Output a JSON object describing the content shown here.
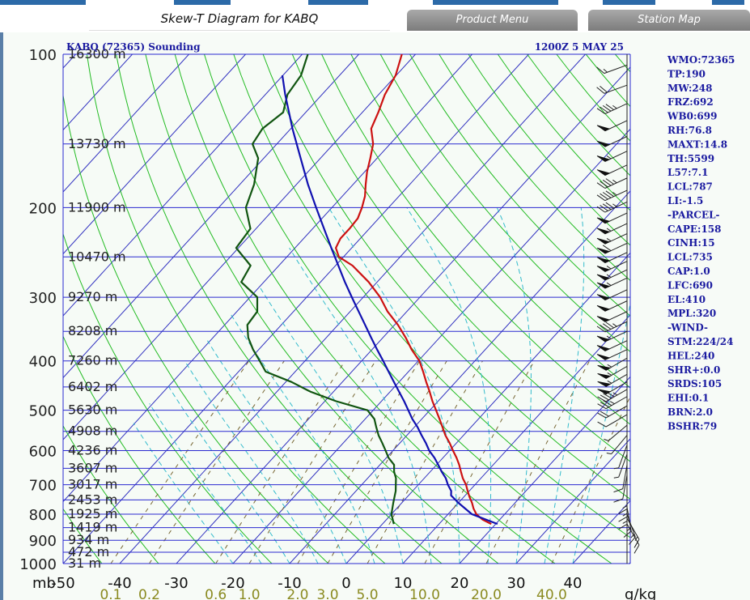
{
  "page": {
    "title": "Skew-T Diagram for KABQ",
    "product_menu_label": "Product Menu",
    "station_map_label": "Station Map"
  },
  "colors": {
    "isobar": "#2a2ad0",
    "isotherm": "#3030c0",
    "dry_adiabat": "#22bb22",
    "moist_adiabat": "#33bbcc",
    "mixing_ratio": "#776633",
    "temperature": "#cc1111",
    "dewpoint": "#115511",
    "parcel": "#1010b0",
    "station_text": "#1a1aa0"
  },
  "chart_data": {
    "type": "line",
    "title": "KABQ (72365) Sounding",
    "time_label": "1200Z  5 MAY 25",
    "pressure_unit_label": "mb",
    "mixing_ratio_unit_label": "g/kg",
    "ylim_mb": [
      1000,
      100
    ],
    "xlim_c": [
      -50,
      50
    ],
    "pressure_ticks": [
      100,
      200,
      300,
      400,
      500,
      600,
      700,
      800,
      900,
      1000
    ],
    "height_ticks": [
      {
        "p": 100,
        "label": "16300 m"
      },
      {
        "p": 150,
        "label": "13730 m"
      },
      {
        "p": 200,
        "label": "11900 m"
      },
      {
        "p": 250,
        "label": "10470 m"
      },
      {
        "p": 300,
        "label": "9270 m"
      },
      {
        "p": 350,
        "label": "8208 m"
      },
      {
        "p": 400,
        "label": "7260 m"
      },
      {
        "p": 450,
        "label": "6402 m"
      },
      {
        "p": 500,
        "label": "5630 m"
      },
      {
        "p": 550,
        "label": "4908 m"
      },
      {
        "p": 600,
        "label": "4236 m"
      },
      {
        "p": 650,
        "label": "3607 m"
      },
      {
        "p": 700,
        "label": "3017 m"
      },
      {
        "p": 750,
        "label": "2453 m"
      },
      {
        "p": 800,
        "label": "1925 m"
      },
      {
        "p": 850,
        "label": "1419 m"
      },
      {
        "p": 900,
        "label": "934 m"
      },
      {
        "p": 950,
        "label": "472 m"
      },
      {
        "p": 1000,
        "label": "31 m"
      }
    ],
    "temp_ticks": [
      "-50",
      "-40",
      "-30",
      "-20",
      "-10",
      "0",
      "10",
      "20",
      "30",
      "40"
    ],
    "mixing_ratio_ticks": [
      "0.1",
      "0.2",
      "0.6",
      "1.0",
      "2.0",
      "3.0",
      "5.0",
      "10.0",
      "20.0",
      "40.0"
    ],
    "mixing_ratio_values": [
      0.1,
      0.2,
      0.6,
      1.0,
      2.0,
      3.0,
      5.0,
      10.0,
      20.0,
      40.0
    ],
    "series": [
      {
        "name": "Temperature",
        "color": "#cc1111",
        "points": [
          [
            836,
            19.2
          ],
          [
            820,
            17.0
          ],
          [
            800,
            15.0
          ],
          [
            780,
            13.6
          ],
          [
            760,
            12.4
          ],
          [
            740,
            11.0
          ],
          [
            720,
            9.7
          ],
          [
            700,
            8.4
          ],
          [
            680,
            6.8
          ],
          [
            660,
            5.4
          ],
          [
            640,
            4.0
          ],
          [
            620,
            2.4
          ],
          [
            600,
            0.6
          ],
          [
            580,
            -1.2
          ],
          [
            560,
            -3.2
          ],
          [
            540,
            -5.0
          ],
          [
            520,
            -6.9
          ],
          [
            500,
            -8.9
          ],
          [
            480,
            -11.0
          ],
          [
            460,
            -13.0
          ],
          [
            440,
            -15.2
          ],
          [
            420,
            -17.4
          ],
          [
            400,
            -19.8
          ],
          [
            380,
            -23.0
          ],
          [
            360,
            -26.0
          ],
          [
            340,
            -29.4
          ],
          [
            320,
            -33.4
          ],
          [
            300,
            -37.0
          ],
          [
            280,
            -41.5
          ],
          [
            260,
            -47.0
          ],
          [
            250,
            -50.8
          ],
          [
            240,
            -52.8
          ],
          [
            230,
            -53.5
          ],
          [
            220,
            -53.5
          ],
          [
            210,
            -53.7
          ],
          [
            200,
            -54.7
          ],
          [
            190,
            -56.0
          ],
          [
            180,
            -57.8
          ],
          [
            170,
            -59.6
          ],
          [
            160,
            -61.2
          ],
          [
            150,
            -63.0
          ],
          [
            140,
            -65.8
          ],
          [
            130,
            -67.2
          ],
          [
            120,
            -68.9
          ],
          [
            110,
            -70.1
          ],
          [
            100,
            -72.4
          ]
        ]
      },
      {
        "name": "Dewpoint",
        "color": "#115511",
        "points": [
          [
            836,
            2.0
          ],
          [
            800,
            0.0
          ],
          [
            760,
            -1.5
          ],
          [
            720,
            -3.0
          ],
          [
            700,
            -4.0
          ],
          [
            680,
            -5.0
          ],
          [
            660,
            -6.4
          ],
          [
            640,
            -7.5
          ],
          [
            620,
            -9.6
          ],
          [
            600,
            -11.3
          ],
          [
            580,
            -13.1
          ],
          [
            560,
            -15.0
          ],
          [
            540,
            -16.7
          ],
          [
            520,
            -18.4
          ],
          [
            500,
            -21.0
          ],
          [
            480,
            -28.0
          ],
          [
            460,
            -34.0
          ],
          [
            440,
            -39.0
          ],
          [
            420,
            -45.2
          ],
          [
            400,
            -48.0
          ],
          [
            380,
            -51.0
          ],
          [
            360,
            -53.8
          ],
          [
            340,
            -56.0
          ],
          [
            320,
            -56.4
          ],
          [
            300,
            -58.7
          ],
          [
            280,
            -64.0
          ],
          [
            260,
            -65.0
          ],
          [
            240,
            -70.4
          ],
          [
            220,
            -71.0
          ],
          [
            200,
            -75.2
          ],
          [
            180,
            -77.5
          ],
          [
            160,
            -81.0
          ],
          [
            150,
            -84.3
          ],
          [
            140,
            -85.0
          ],
          [
            130,
            -84.0
          ],
          [
            120,
            -86.1
          ],
          [
            110,
            -86.8
          ],
          [
            100,
            -89.0
          ]
        ]
      },
      {
        "name": "Parcel",
        "color": "#1010b0",
        "points": [
          [
            836,
            20.3
          ],
          [
            800,
            14.2
          ],
          [
            760,
            10.0
          ],
          [
            735,
            7.5
          ],
          [
            720,
            6.8
          ],
          [
            700,
            5.2
          ],
          [
            680,
            3.8
          ],
          [
            660,
            2.0
          ],
          [
            640,
            0.3
          ],
          [
            620,
            -1.5
          ],
          [
            600,
            -3.6
          ],
          [
            580,
            -5.4
          ],
          [
            560,
            -7.4
          ],
          [
            540,
            -9.4
          ],
          [
            520,
            -11.7
          ],
          [
            500,
            -13.8
          ],
          [
            480,
            -16.0
          ],
          [
            460,
            -18.4
          ],
          [
            440,
            -20.9
          ],
          [
            420,
            -23.5
          ],
          [
            400,
            -26.2
          ],
          [
            380,
            -29.1
          ],
          [
            360,
            -32.1
          ],
          [
            340,
            -35.2
          ],
          [
            320,
            -38.5
          ],
          [
            300,
            -42.0
          ],
          [
            280,
            -45.7
          ],
          [
            260,
            -49.5
          ],
          [
            240,
            -53.6
          ],
          [
            220,
            -58.0
          ],
          [
            200,
            -62.8
          ],
          [
            180,
            -68.0
          ],
          [
            160,
            -73.5
          ],
          [
            140,
            -79.7
          ],
          [
            120,
            -86.5
          ],
          [
            110,
            -90.1
          ]
        ]
      }
    ]
  },
  "station_info": [
    "WMO:72365",
    "TP:190",
    "MW:248",
    "FRZ:692",
    "WB0:699",
    "RH:76.8",
    "MAXT:14.8",
    "TH:5599",
    "L57:7.1",
    "LCL:787",
    "LI:-1.5",
    "-PARCEL-",
    "CAPE:158",
    "CINH:15",
    "LCL:735",
    "CAP:1.0",
    "LFC:690",
    "EL:410",
    "MPL:320",
    "-WIND-",
    "STM:224/24",
    "HEL:240",
    "SHR+:0.0",
    "SRDS:105",
    "EHI:0.1",
    "BRN:2.0",
    "BSHR:79"
  ],
  "wind_barbs": [
    {
      "p": 105,
      "dir": 250,
      "spd": 15
    },
    {
      "p": 115,
      "dir": 250,
      "spd": 20
    },
    {
      "p": 125,
      "dir": 245,
      "spd": 45
    },
    {
      "p": 135,
      "dir": 245,
      "spd": 50
    },
    {
      "p": 145,
      "dir": 245,
      "spd": 50
    },
    {
      "p": 155,
      "dir": 245,
      "spd": 55
    },
    {
      "p": 165,
      "dir": 245,
      "spd": 50
    },
    {
      "p": 175,
      "dir": 245,
      "spd": 45
    },
    {
      "p": 185,
      "dir": 245,
      "spd": 45
    },
    {
      "p": 195,
      "dir": 245,
      "spd": 45
    },
    {
      "p": 205,
      "dir": 245,
      "spd": 50
    },
    {
      "p": 215,
      "dir": 245,
      "spd": 55
    },
    {
      "p": 225,
      "dir": 245,
      "spd": 55
    },
    {
      "p": 235,
      "dir": 245,
      "spd": 60
    },
    {
      "p": 245,
      "dir": 245,
      "spd": 50
    },
    {
      "p": 255,
      "dir": 245,
      "spd": 55
    },
    {
      "p": 265,
      "dir": 245,
      "spd": 55
    },
    {
      "p": 275,
      "dir": 245,
      "spd": 55
    },
    {
      "p": 290,
      "dir": 245,
      "spd": 50
    },
    {
      "p": 305,
      "dir": 245,
      "spd": 50
    },
    {
      "p": 320,
      "dir": 245,
      "spd": 50
    },
    {
      "p": 335,
      "dir": 245,
      "spd": 45
    },
    {
      "p": 350,
      "dir": 245,
      "spd": 55
    },
    {
      "p": 365,
      "dir": 245,
      "spd": 50
    },
    {
      "p": 380,
      "dir": 245,
      "spd": 50
    },
    {
      "p": 395,
      "dir": 240,
      "spd": 55
    },
    {
      "p": 410,
      "dir": 240,
      "spd": 55
    },
    {
      "p": 425,
      "dir": 240,
      "spd": 55
    },
    {
      "p": 440,
      "dir": 240,
      "spd": 50
    },
    {
      "p": 455,
      "dir": 240,
      "spd": 45
    },
    {
      "p": 470,
      "dir": 240,
      "spd": 35
    },
    {
      "p": 490,
      "dir": 240,
      "spd": 20
    },
    {
      "p": 510,
      "dir": 240,
      "spd": 10
    },
    {
      "p": 535,
      "dir": 230,
      "spd": 5
    },
    {
      "p": 560,
      "dir": 220,
      "spd": 5
    },
    {
      "p": 585,
      "dir": 200,
      "spd": 5
    },
    {
      "p": 610,
      "dir": 200,
      "spd": 5
    },
    {
      "p": 640,
      "dir": 190,
      "spd": 10
    },
    {
      "p": 670,
      "dir": 190,
      "spd": 10
    },
    {
      "p": 700,
      "dir": 180,
      "spd": 15
    },
    {
      "p": 725,
      "dir": 180,
      "spd": 15
    },
    {
      "p": 750,
      "dir": 180,
      "spd": 15
    },
    {
      "p": 775,
      "dir": 170,
      "spd": 15
    },
    {
      "p": 800,
      "dir": 160,
      "spd": 15
    },
    {
      "p": 815,
      "dir": 150,
      "spd": 15
    },
    {
      "p": 836,
      "dir": 150,
      "spd": 15
    }
  ]
}
